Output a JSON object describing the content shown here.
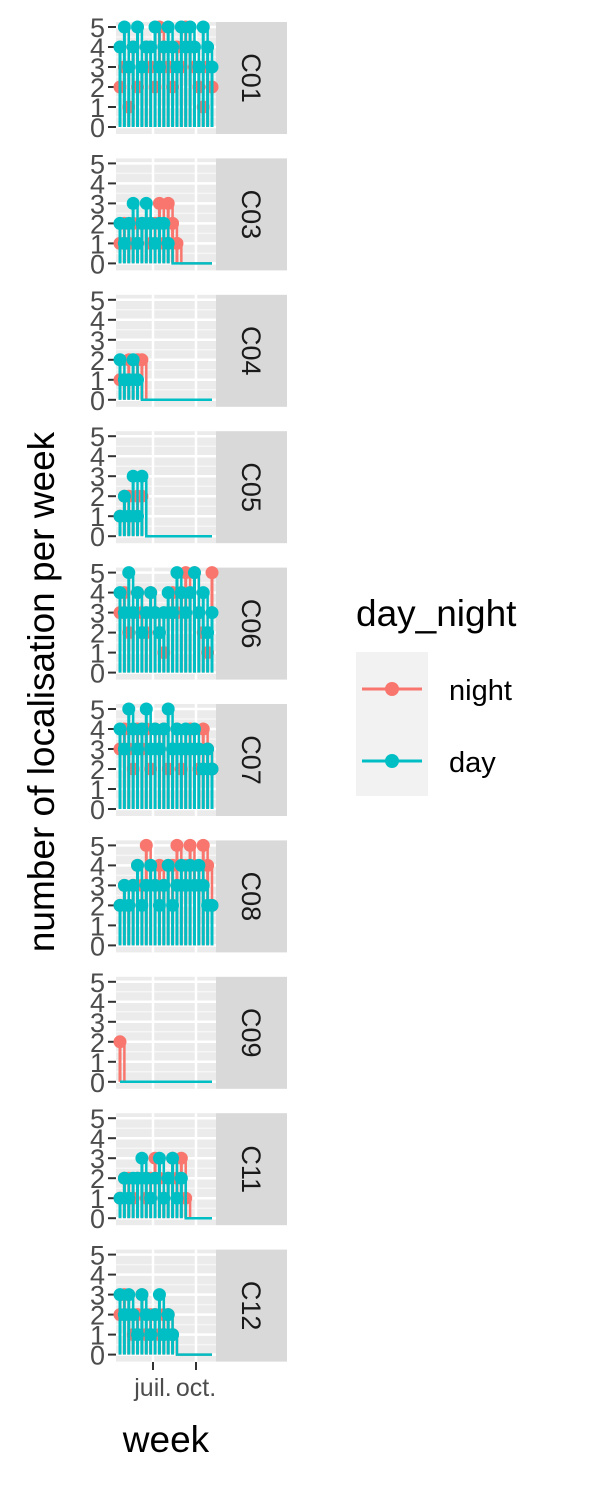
{
  "chart_data": {
    "type": "line",
    "xlabel": "week",
    "ylabel": "number of localisation per week",
    "x_tick_labels": [
      "juil.",
      "oct."
    ],
    "yticks": [
      0,
      1,
      2,
      3,
      4,
      5
    ],
    "ylim": [
      0,
      5
    ],
    "facet_by": "site",
    "legend": {
      "title": "day_night",
      "position": "right",
      "entries": [
        {
          "label": "night",
          "color": "#F8766D"
        },
        {
          "label": "day",
          "color": "#00BFC4"
        }
      ]
    },
    "grid": true,
    "x_weeks": 22,
    "panels": [
      {
        "label": "C01",
        "night": [
          2,
          3,
          1,
          4,
          2,
          3,
          4,
          3,
          2,
          5,
          4,
          3,
          2,
          4,
          3,
          5,
          4,
          3,
          2,
          1,
          3,
          2
        ],
        "day": [
          4,
          5,
          3,
          4,
          5,
          3,
          4,
          4,
          5,
          3,
          4,
          5,
          4,
          3,
          5,
          4,
          5,
          4,
          3,
          5,
          4,
          3
        ]
      },
      {
        "label": "C03",
        "night": [
          1,
          2,
          1,
          2,
          1,
          2,
          2,
          1,
          2,
          3,
          1,
          3,
          2,
          1,
          0,
          0,
          0,
          0,
          0,
          0,
          0,
          0
        ],
        "day": [
          2,
          1,
          2,
          3,
          1,
          2,
          3,
          2,
          1,
          2,
          2,
          1,
          0,
          0,
          0,
          0,
          0,
          0,
          0,
          0,
          0,
          0
        ]
      },
      {
        "label": "C04",
        "night": [
          1,
          1,
          2,
          1,
          2,
          2,
          0,
          0,
          0,
          0,
          0,
          0,
          0,
          0,
          0,
          0,
          0,
          0,
          0,
          0,
          0,
          0
        ],
        "day": [
          2,
          1,
          1,
          2,
          1,
          0,
          0,
          0,
          0,
          0,
          0,
          0,
          0,
          0,
          0,
          0,
          0,
          0,
          0,
          0,
          0,
          0
        ]
      },
      {
        "label": "C05",
        "night": [
          1,
          2,
          2,
          1,
          2,
          2,
          0,
          0,
          0,
          0,
          0,
          0,
          0,
          0,
          0,
          0,
          0,
          0,
          0,
          0,
          0,
          0
        ],
        "day": [
          1,
          2,
          1,
          3,
          1,
          3,
          0,
          0,
          0,
          0,
          0,
          0,
          0,
          0,
          0,
          0,
          0,
          0,
          0,
          0,
          0,
          0
        ]
      },
      {
        "label": "C06",
        "night": [
          3,
          4,
          2,
          3,
          4,
          3,
          2,
          4,
          3,
          2,
          1,
          3,
          4,
          3,
          4,
          5,
          4,
          5,
          3,
          2,
          1,
          5
        ],
        "day": [
          4,
          3,
          5,
          3,
          4,
          2,
          3,
          4,
          3,
          2,
          3,
          4,
          3,
          5,
          4,
          3,
          4,
          5,
          3,
          4,
          2,
          3
        ]
      },
      {
        "label": "C07",
        "night": [
          3,
          4,
          3,
          2,
          4,
          3,
          4,
          2,
          4,
          3,
          4,
          2,
          3,
          4,
          2,
          3,
          4,
          3,
          2,
          4,
          3,
          2
        ],
        "day": [
          4,
          3,
          5,
          4,
          3,
          4,
          5,
          3,
          4,
          3,
          4,
          5,
          3,
          4,
          3,
          4,
          3,
          4,
          3,
          2,
          3,
          2
        ]
      },
      {
        "label": "C08",
        "night": [
          2,
          3,
          2,
          3,
          4,
          3,
          5,
          4,
          3,
          4,
          3,
          4,
          4,
          5,
          3,
          4,
          5,
          4,
          3,
          5,
          4,
          2
        ],
        "day": [
          2,
          3,
          2,
          3,
          4,
          2,
          3,
          4,
          3,
          2,
          3,
          4,
          2,
          3,
          4,
          3,
          4,
          3,
          4,
          3,
          2,
          2
        ]
      },
      {
        "label": "C09",
        "night": [
          2,
          0,
          0,
          0,
          0,
          0,
          0,
          0,
          0,
          0,
          0,
          0,
          0,
          0,
          0,
          0,
          0,
          0,
          0,
          0,
          0,
          0
        ],
        "day": [
          0,
          0,
          0,
          0,
          0,
          0,
          0,
          0,
          0,
          0,
          0,
          0,
          0,
          0,
          0,
          0,
          0,
          0,
          0,
          0,
          0,
          0
        ]
      },
      {
        "label": "C11",
        "night": [
          1,
          2,
          2,
          1,
          2,
          2,
          1,
          2,
          3,
          2,
          1,
          2,
          3,
          2,
          3,
          1,
          0,
          0,
          0,
          0,
          0,
          0
        ],
        "day": [
          1,
          2,
          1,
          2,
          2,
          3,
          2,
          1,
          2,
          3,
          1,
          2,
          3,
          1,
          2,
          0,
          0,
          0,
          0,
          0,
          0,
          0
        ]
      },
      {
        "label": "C12",
        "night": [
          2,
          3,
          2,
          1,
          2,
          3,
          1,
          2,
          2,
          1,
          2,
          2,
          1,
          0,
          0,
          0,
          0,
          0,
          0,
          0,
          0,
          0
        ],
        "day": [
          3,
          2,
          3,
          2,
          1,
          3,
          2,
          1,
          2,
          3,
          1,
          2,
          1,
          0,
          0,
          0,
          0,
          0,
          0,
          0,
          0,
          0
        ]
      }
    ]
  }
}
